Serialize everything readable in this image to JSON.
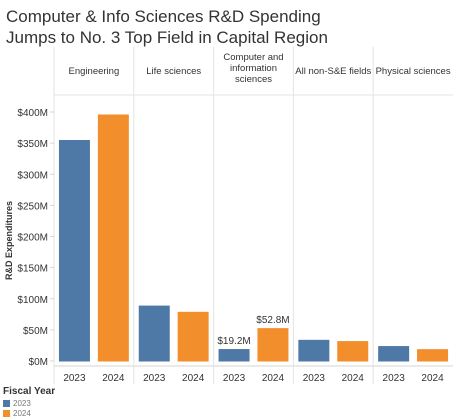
{
  "chart_data": {
    "type": "bar",
    "title_lines": [
      "Computer & Info Sciences R&D Spending",
      "Jumps to No. 3 Top Field in Capital Region"
    ],
    "ylabel": "R&D Expenditures",
    "ylim": [
      0,
      420
    ],
    "y_ticks": [
      0,
      50,
      100,
      150,
      200,
      250,
      300,
      350,
      400
    ],
    "y_tick_labels": [
      "$0M",
      "$50M",
      "$100M",
      "$150M",
      "$200M",
      "$250M",
      "$300M",
      "$350M",
      "$400M"
    ],
    "grid": false,
    "legend_position": "bottom-left",
    "legend_title": "Fiscal Year",
    "panels": [
      {
        "label_lines": [
          "Engineering"
        ],
        "values": [
          355,
          396
        ],
        "data_labels": [
          "",
          ""
        ]
      },
      {
        "label_lines": [
          "Life sciences"
        ],
        "values": [
          89,
          79
        ],
        "data_labels": [
          "",
          ""
        ]
      },
      {
        "label_lines": [
          "Computer and",
          "information",
          "sciences"
        ],
        "values": [
          19.2,
          52.8
        ],
        "data_labels": [
          "$19.2M",
          "$52.8M"
        ]
      },
      {
        "label_lines": [
          "All non-S&E fields"
        ],
        "values": [
          34,
          32
        ],
        "data_labels": [
          "",
          ""
        ]
      },
      {
        "label_lines": [
          "Physical sciences"
        ],
        "values": [
          24,
          19
        ],
        "data_labels": [
          "",
          ""
        ]
      }
    ],
    "series": [
      {
        "name": "2023",
        "color": "#4e79a7"
      },
      {
        "name": "2024",
        "color": "#f28e2b"
      }
    ]
  }
}
